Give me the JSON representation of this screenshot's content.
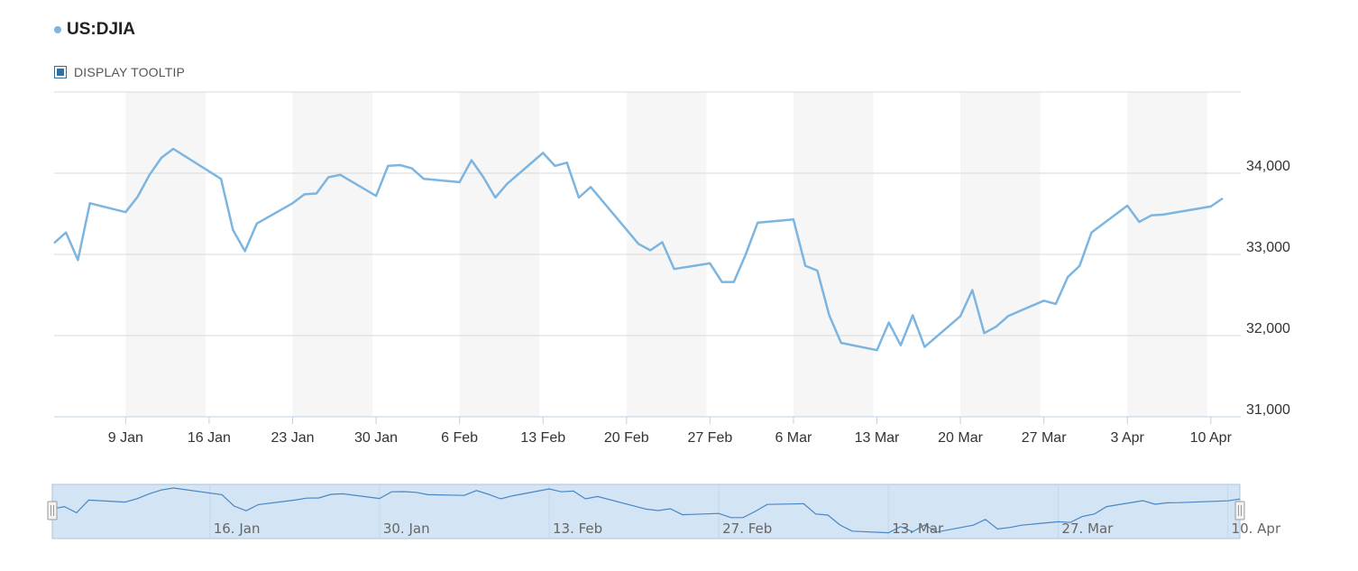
{
  "legend": {
    "series_name": "US:DJIA",
    "color": "#7cb5e0"
  },
  "tooltip_toggle": {
    "label": "DISPLAY TOOLTIP",
    "checked": true
  },
  "chart_data": {
    "type": "line",
    "series": [
      {
        "name": "US:DJIA",
        "color": "#7cb5e0",
        "points": [
          [
            "2023-01-03",
            33140
          ],
          [
            "2023-01-04",
            33270
          ],
          [
            "2023-01-05",
            32930
          ],
          [
            "2023-01-06",
            33630
          ],
          [
            "2023-01-09",
            33520
          ],
          [
            "2023-01-10",
            33710
          ],
          [
            "2023-01-11",
            33980
          ],
          [
            "2023-01-12",
            34190
          ],
          [
            "2023-01-13",
            34300
          ],
          [
            "2023-01-17",
            33930
          ],
          [
            "2023-01-18",
            33300
          ],
          [
            "2023-01-19",
            33040
          ],
          [
            "2023-01-20",
            33380
          ],
          [
            "2023-01-23",
            33630
          ],
          [
            "2023-01-24",
            33740
          ],
          [
            "2023-01-25",
            33750
          ],
          [
            "2023-01-26",
            33950
          ],
          [
            "2023-01-27",
            33980
          ],
          [
            "2023-01-30",
            33720
          ],
          [
            "2023-01-31",
            34090
          ],
          [
            "2023-02-01",
            34100
          ],
          [
            "2023-02-02",
            34060
          ],
          [
            "2023-02-03",
            33930
          ],
          [
            "2023-02-06",
            33890
          ],
          [
            "2023-02-07",
            34160
          ],
          [
            "2023-02-08",
            33950
          ],
          [
            "2023-02-09",
            33700
          ],
          [
            "2023-02-10",
            33870
          ],
          [
            "2023-02-13",
            34250
          ],
          [
            "2023-02-14",
            34090
          ],
          [
            "2023-02-15",
            34130
          ],
          [
            "2023-02-16",
            33700
          ],
          [
            "2023-02-17",
            33830
          ],
          [
            "2023-02-21",
            33130
          ],
          [
            "2023-02-22",
            33050
          ],
          [
            "2023-02-23",
            33150
          ],
          [
            "2023-02-24",
            32820
          ],
          [
            "2023-02-27",
            32890
          ],
          [
            "2023-02-28",
            32660
          ],
          [
            "2023-03-01",
            32660
          ],
          [
            "2023-03-02",
            33000
          ],
          [
            "2023-03-03",
            33390
          ],
          [
            "2023-03-06",
            33430
          ],
          [
            "2023-03-07",
            32860
          ],
          [
            "2023-03-08",
            32800
          ],
          [
            "2023-03-09",
            32250
          ],
          [
            "2023-03-10",
            31910
          ],
          [
            "2023-03-13",
            31820
          ],
          [
            "2023-03-14",
            32160
          ],
          [
            "2023-03-15",
            31880
          ],
          [
            "2023-03-16",
            32250
          ],
          [
            "2023-03-17",
            31860
          ],
          [
            "2023-03-20",
            32240
          ],
          [
            "2023-03-21",
            32560
          ],
          [
            "2023-03-22",
            32030
          ],
          [
            "2023-03-23",
            32110
          ],
          [
            "2023-03-24",
            32240
          ],
          [
            "2023-03-27",
            32430
          ],
          [
            "2023-03-28",
            32390
          ],
          [
            "2023-03-29",
            32720
          ],
          [
            "2023-03-30",
            32860
          ],
          [
            "2023-03-31",
            33270
          ],
          [
            "2023-04-03",
            33600
          ],
          [
            "2023-04-04",
            33400
          ],
          [
            "2023-04-05",
            33480
          ],
          [
            "2023-04-06",
            33490
          ],
          [
            "2023-04-10",
            33590
          ],
          [
            "2023-04-11",
            33690
          ]
        ]
      }
    ],
    "x_ticks": [
      "9 Jan",
      "16 Jan",
      "23 Jan",
      "30 Jan",
      "6 Feb",
      "13 Feb",
      "20 Feb",
      "27 Feb",
      "6 Mar",
      "13 Mar",
      "20 Mar",
      "27 Mar",
      "3 Apr",
      "10 Apr"
    ],
    "x_tick_dates": [
      "2023-01-09",
      "2023-01-16",
      "2023-01-23",
      "2023-01-30",
      "2023-02-06",
      "2023-02-13",
      "2023-02-20",
      "2023-02-27",
      "2023-03-06",
      "2023-03-13",
      "2023-03-20",
      "2023-03-27",
      "2023-04-03",
      "2023-04-10"
    ],
    "y_ticks": [
      "31,000",
      "32,000",
      "33,000",
      "34,000"
    ],
    "y_tick_values": [
      31000,
      32000,
      33000,
      34000
    ],
    "ylim": [
      31000,
      35000
    ],
    "xlim": [
      "2023-01-03",
      "2023-04-11"
    ],
    "grid": true,
    "alternating_week_bands": true,
    "navigator": {
      "ticks": [
        "16. Jan",
        "30. Jan",
        "13. Feb",
        "27. Feb",
        "13. Mar",
        "27. Mar",
        "10. Apr"
      ],
      "tick_dates": [
        "2023-01-16",
        "2023-01-30",
        "2023-02-13",
        "2023-02-27",
        "2023-03-13",
        "2023-03-27",
        "2023-04-10"
      ],
      "selected_range": [
        "2023-01-03",
        "2023-04-11"
      ]
    }
  }
}
